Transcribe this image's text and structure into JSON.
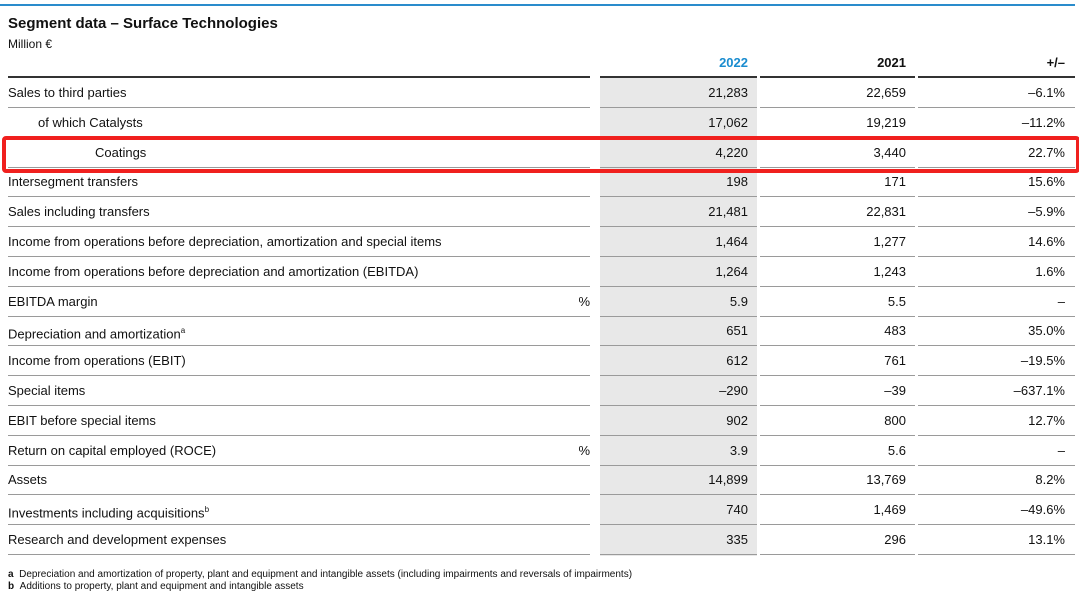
{
  "header": {
    "title": "Segment data – Surface Technologies",
    "unit": "Million €"
  },
  "table": {
    "columns": [
      "2022",
      "2021",
      "+/–"
    ],
    "rows": [
      {
        "label": "Sales to third parties",
        "values": [
          "21,283",
          "22,659",
          "–6.1%"
        ]
      },
      {
        "label": "of which Catalysts",
        "values": [
          "17,062",
          "19,219",
          "–11.2%"
        ]
      },
      {
        "label": "Coatings",
        "values": [
          "4,220",
          "3,440",
          "22.7%"
        ]
      },
      {
        "label": "Intersegment transfers",
        "values": [
          "198",
          "171",
          "15.6%"
        ]
      },
      {
        "label": "Sales including transfers",
        "values": [
          "21,481",
          "22,831",
          "–5.9%"
        ]
      },
      {
        "label": "Income from operations before depreciation, amortization and special items",
        "values": [
          "1,464",
          "1,277",
          "14.6%"
        ]
      },
      {
        "label": "Income from operations before depreciation and amortization (EBITDA)",
        "values": [
          "1,264",
          "1,243",
          "1.6%"
        ]
      },
      {
        "label": "EBITDA margin",
        "unit": "%",
        "values": [
          "5.9",
          "5.5",
          "–"
        ]
      },
      {
        "label": "Depreciation and amortization",
        "note": "a",
        "values": [
          "651",
          "483",
          "35.0%"
        ]
      },
      {
        "label": "Income from operations (EBIT)",
        "values": [
          "612",
          "761",
          "–19.5%"
        ]
      },
      {
        "label": "Special items",
        "values": [
          "–290",
          "–39",
          "–637.1%"
        ]
      },
      {
        "label": "EBIT before special items",
        "values": [
          "902",
          "800",
          "12.7%"
        ]
      },
      {
        "label": "Return on capital employed (ROCE)",
        "unit": "%",
        "values": [
          "3.9",
          "5.6",
          "–"
        ]
      },
      {
        "label": "Assets",
        "values": [
          "14,899",
          "13,769",
          "8.2%"
        ]
      },
      {
        "label": "Investments including acquisitions",
        "note": "b",
        "values": [
          "740",
          "1,469",
          "–49.6%"
        ]
      },
      {
        "label": "Research and development expenses",
        "values": [
          "335",
          "296",
          "13.1%"
        ]
      }
    ]
  },
  "footnotes": [
    {
      "mark": "a",
      "text": "Depreciation and amortization of property, plant and equipment and intangible assets (including impairments and reversals of impairments)"
    },
    {
      "mark": "b",
      "text": "Additions to property, plant and equipment and intangible assets"
    }
  ]
}
